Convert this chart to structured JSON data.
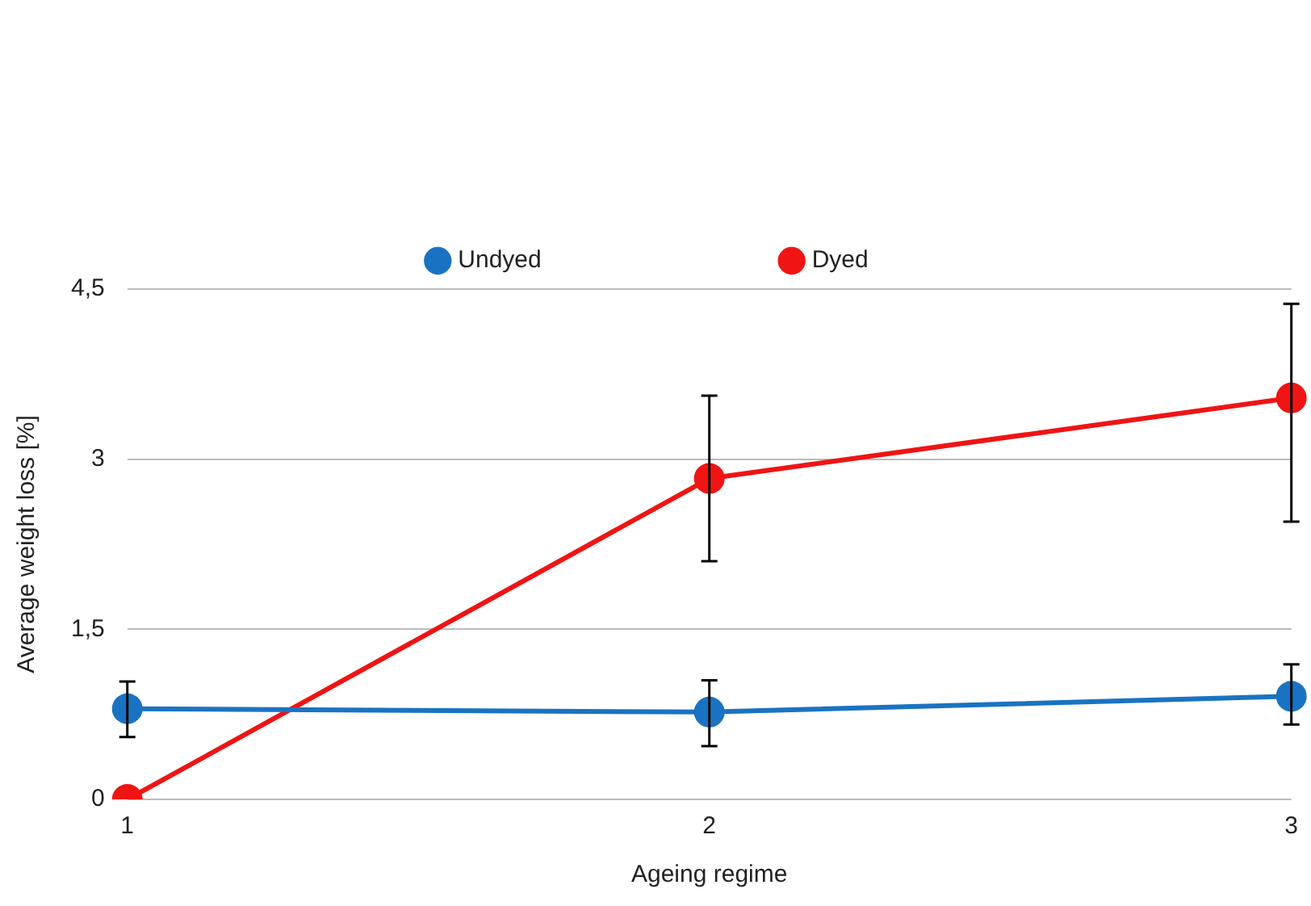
{
  "chart_data": {
    "type": "line",
    "xlabel": "Ageing regime",
    "ylabel": "Average weight loss [%]",
    "categories": [
      "1",
      "2",
      "3"
    ],
    "series": [
      {
        "name": "Undyed",
        "color": "#1a73c2",
        "values": [
          0.8,
          0.77,
          0.91
        ],
        "errors": [
          [
            0.55,
            1.04
          ],
          [
            0.47,
            1.05
          ],
          [
            0.66,
            1.19
          ]
        ]
      },
      {
        "name": "Dyed",
        "color": "#f01414",
        "values": [
          0,
          2.83,
          3.54
        ],
        "errors": [
          null,
          [
            2.1,
            3.56
          ],
          [
            2.45,
            4.37
          ]
        ]
      }
    ],
    "ylim": [
      0,
      4.5
    ],
    "yticks": [
      {
        "value": 0,
        "label": "0"
      },
      {
        "value": 1.5,
        "label": "1,5"
      },
      {
        "value": 3,
        "label": "3"
      },
      {
        "value": 4.5,
        "label": "4,5"
      }
    ],
    "grid": "y",
    "legend": "top",
    "marker": "circle",
    "line_style": "solid"
  }
}
